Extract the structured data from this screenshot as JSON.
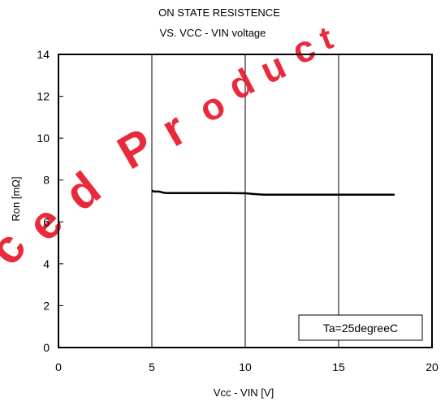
{
  "chart_data": {
    "type": "line",
    "title_line1": "ON STATE RESISTENCE",
    "title_line2": "VS. VCC - VIN voltage",
    "xlabel": "Vcc - VIN [V]",
    "ylabel": "Ron [mΩ]",
    "xlim": [
      0,
      20
    ],
    "ylim": [
      0,
      14
    ],
    "x_ticks": [
      0,
      5,
      10,
      15,
      20
    ],
    "y_ticks": [
      0,
      2,
      4,
      6,
      8,
      10,
      12,
      14
    ],
    "grid": "vertical",
    "annotation": "Ta=25degreeC",
    "annotation_position": "bottom-right",
    "series": [
      {
        "color": "#000000",
        "x": [
          5.0,
          5.1,
          5.4,
          5.6,
          5.8,
          7,
          8,
          9,
          10,
          10.5,
          11,
          12,
          14,
          16,
          18
        ],
        "y": [
          7.5,
          7.45,
          7.45,
          7.4,
          7.38,
          7.38,
          7.38,
          7.38,
          7.37,
          7.33,
          7.3,
          7.3,
          7.3,
          7.3,
          7.3
        ]
      }
    ]
  },
  "watermark": {
    "text": "ced Product",
    "color": "#e8192c"
  }
}
